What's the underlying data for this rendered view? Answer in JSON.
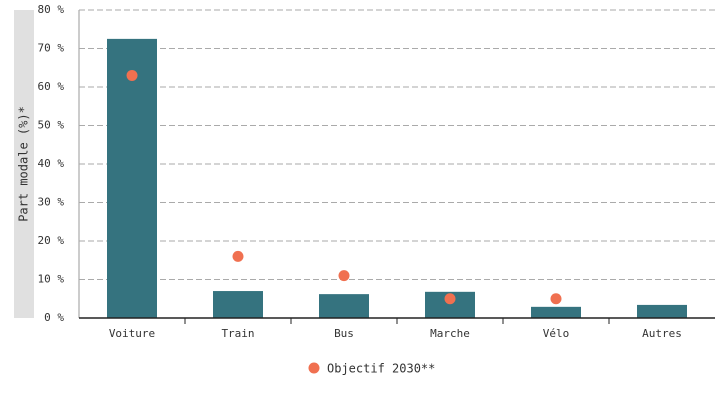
{
  "chart_data": {
    "type": "bar",
    "y_label": "Part modale (%)*",
    "categories": [
      "Voiture",
      "Train",
      "Bus",
      "Marche",
      "Vélo",
      "Autres"
    ],
    "series": [
      {
        "color": "#35737f",
        "values": [
          72.5,
          7,
          6.2,
          6.8,
          2.9,
          3.4
        ]
      },
      {
        "name": "Objectif 2030**",
        "type": "scatter",
        "color": "#f07050",
        "values": [
          63,
          16,
          11,
          5,
          5,
          null
        ]
      }
    ],
    "ylim": [
      0,
      80
    ],
    "yticks": [
      {
        "value": 0,
        "label": "0 %"
      },
      {
        "value": 10,
        "label": "10 %"
      },
      {
        "value": 20,
        "label": "20 %"
      },
      {
        "value": 30,
        "label": "30 %"
      },
      {
        "value": 40,
        "label": "40 %"
      },
      {
        "value": 50,
        "label": "50 %"
      },
      {
        "value": 60,
        "label": "60 %"
      },
      {
        "value": 70,
        "label": "70 %"
      },
      {
        "value": 80,
        "label": "80 %"
      }
    ],
    "grid": true
  }
}
